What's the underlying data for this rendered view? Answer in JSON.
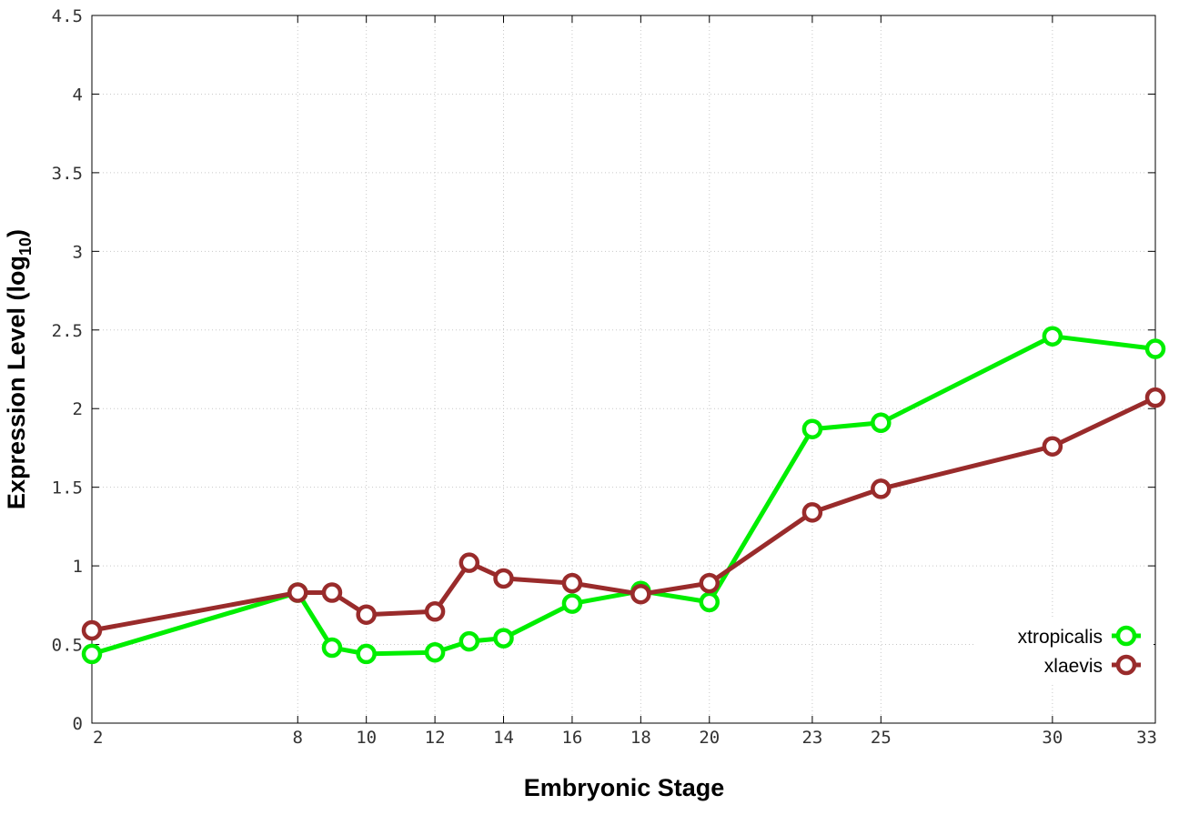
{
  "chart_data": {
    "type": "line",
    "xlabel": "Embryonic Stage",
    "ylabel_main": "Expression Level (log",
    "ylabel_sub": "10",
    "ylabel_close": ")",
    "x_ticks": [
      2,
      8,
      10,
      12,
      14,
      16,
      18,
      20,
      23,
      25,
      30,
      33
    ],
    "y_ticks": [
      "0",
      "0.5",
      "1",
      "1.5",
      "2",
      "2.5",
      "3",
      "3.5",
      "4",
      "4.5"
    ],
    "xlim": [
      2,
      33
    ],
    "ylim": [
      0,
      4.5
    ],
    "grid": true,
    "legend_position": "bottom-right",
    "series": [
      {
        "name": "xtropicalis",
        "color": "#00ee00",
        "x": [
          2,
          8,
          9,
          10,
          12,
          13,
          14,
          16,
          18,
          20,
          23,
          25,
          30,
          33
        ],
        "values": [
          0.44,
          0.83,
          0.48,
          0.44,
          0.45,
          0.52,
          0.54,
          0.76,
          0.84,
          0.77,
          1.87,
          1.91,
          2.46,
          2.38
        ]
      },
      {
        "name": "xlaevis",
        "color": "#992b2b",
        "x": [
          2,
          8,
          9,
          10,
          12,
          13,
          14,
          16,
          18,
          20,
          23,
          25,
          30,
          33
        ],
        "values": [
          0.59,
          0.83,
          0.83,
          0.69,
          0.71,
          1.02,
          0.92,
          0.89,
          0.82,
          0.89,
          1.34,
          1.49,
          1.76,
          2.07
        ]
      }
    ]
  }
}
